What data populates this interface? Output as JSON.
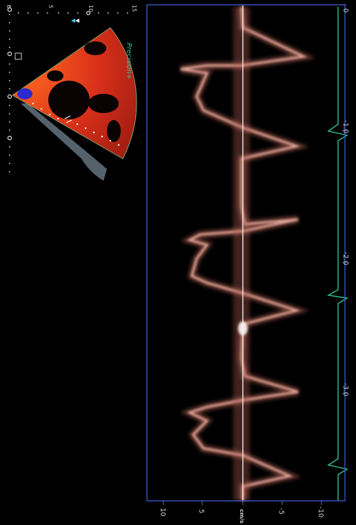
{
  "sector_scale": {
    "labels": [
      "0",
      "5",
      "10",
      "15"
    ]
  },
  "brand": "Precision+",
  "spectral": {
    "time_labels": [
      "0",
      "-1.0",
      "-2.0",
      "-3.0"
    ],
    "velocity_labels": [
      "10",
      "5",
      "cm/s",
      "-5",
      "-10"
    ]
  },
  "colors": {
    "frame": "#3a56c8",
    "baseline": "#f2f2f2",
    "ecg": "#2fc79a",
    "doppler": "#e8a79a",
    "color_flow": "#d4301a",
    "color_flow_blue": "#2a2ad0",
    "brand": "#2ec9a8"
  }
}
